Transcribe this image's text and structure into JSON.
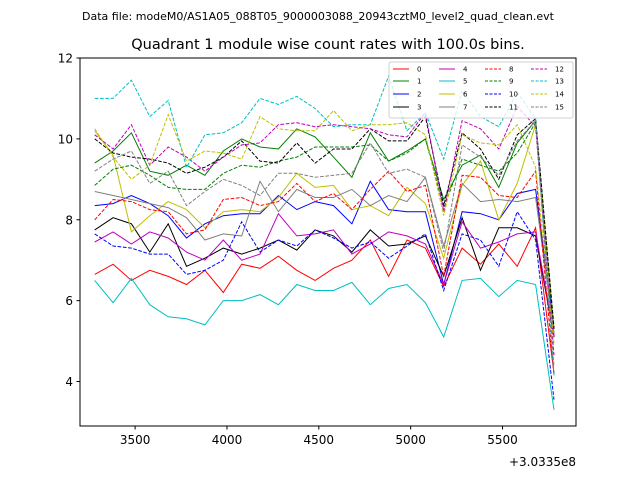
{
  "header": {
    "file_info": "Data file: modeM0/AS1A05_088T05_9000003088_20943cztM0_level2_quad_clean.evt"
  },
  "chart_data": {
    "type": "line",
    "title": "Quadrant 1 module wise count rates with 100.0s bins.",
    "xlabel": "",
    "ylabel": "",
    "x_offset_label": "+3.0335e8",
    "xlim": [
      3200,
      5900
    ],
    "ylim": [
      2.9,
      12
    ],
    "xticks": [
      3500,
      4000,
      4500,
      5000,
      5500
    ],
    "yticks": [
      4,
      6,
      8,
      10,
      12
    ],
    "x": [
      3280,
      3380,
      3480,
      3580,
      3680,
      3780,
      3880,
      3980,
      4080,
      4180,
      4280,
      4380,
      4480,
      4580,
      4680,
      4780,
      4880,
      4980,
      5080,
      5180,
      5280,
      5380,
      5480,
      5580,
      5680,
      5780
    ],
    "series": [
      {
        "name": "0",
        "color": "#ff0000",
        "dash": "solid",
        "values": [
          6.65,
          6.9,
          6.5,
          6.75,
          6.6,
          6.4,
          6.75,
          6.2,
          6.9,
          6.8,
          7.1,
          6.75,
          6.5,
          6.8,
          7.0,
          7.5,
          6.6,
          7.5,
          7.3,
          6.35,
          7.3,
          6.9,
          7.4,
          6.85,
          7.8,
          4.2
        ]
      },
      {
        "name": "1",
        "color": "#008000",
        "dash": "solid",
        "values": [
          9.4,
          9.7,
          10.15,
          9.2,
          9.1,
          9.35,
          9.1,
          9.7,
          10.0,
          9.8,
          9.75,
          10.25,
          10.05,
          9.55,
          9.05,
          10.15,
          9.45,
          9.7,
          10.0,
          8.5,
          9.35,
          9.6,
          8.8,
          9.9,
          10.45,
          5.1
        ]
      },
      {
        "name": "2",
        "color": "#0000ff",
        "dash": "solid",
        "values": [
          8.35,
          8.4,
          8.6,
          8.4,
          8.1,
          7.55,
          7.9,
          8.1,
          8.15,
          8.15,
          8.6,
          8.25,
          8.45,
          8.35,
          7.9,
          8.95,
          8.25,
          8.2,
          8.2,
          6.4,
          8.2,
          8.15,
          8.0,
          8.65,
          8.75,
          5.3
        ]
      },
      {
        "name": "3",
        "color": "#000000",
        "dash": "solid",
        "values": [
          7.75,
          8.05,
          7.9,
          7.2,
          7.9,
          6.85,
          7.05,
          7.3,
          7.15,
          7.3,
          7.5,
          7.25,
          7.75,
          7.6,
          7.2,
          7.75,
          7.35,
          7.4,
          7.6,
          6.6,
          8.05,
          6.75,
          7.8,
          7.8,
          7.6,
          5.1
        ]
      },
      {
        "name": "4",
        "color": "#bf00bf",
        "dash": "solid",
        "values": [
          7.45,
          7.7,
          7.4,
          7.7,
          7.55,
          7.2,
          7.0,
          7.5,
          7.0,
          7.15,
          8.15,
          7.6,
          7.65,
          7.75,
          7.15,
          7.4,
          7.7,
          7.6,
          7.4,
          6.4,
          7.95,
          7.3,
          7.45,
          7.65,
          7.7,
          5.15
        ]
      },
      {
        "name": "5",
        "color": "#00bfbf",
        "dash": "solid",
        "values": [
          6.5,
          5.95,
          6.55,
          5.9,
          5.6,
          5.55,
          5.4,
          6.0,
          6.0,
          6.15,
          5.9,
          6.4,
          6.25,
          6.25,
          6.45,
          5.9,
          6.3,
          6.4,
          5.95,
          5.1,
          6.5,
          6.55,
          6.1,
          6.5,
          6.4,
          3.3
        ]
      },
      {
        "name": "6",
        "color": "#bfbf00",
        "dash": "solid",
        "values": [
          10.2,
          9.6,
          7.7,
          8.1,
          8.45,
          8.25,
          7.8,
          8.2,
          8.25,
          8.2,
          8.55,
          9.15,
          8.8,
          8.85,
          8.25,
          8.35,
          8.1,
          8.8,
          8.4,
          7.05,
          8.85,
          9.45,
          8.0,
          8.9,
          10.35,
          5.3
        ]
      },
      {
        "name": "7",
        "color": "#808080",
        "dash": "solid",
        "values": [
          8.7,
          8.6,
          8.5,
          8.4,
          8.3,
          8.05,
          7.5,
          7.65,
          7.6,
          8.95,
          8.2,
          8.75,
          8.55,
          8.55,
          8.75,
          8.35,
          8.6,
          8.45,
          9.05,
          7.35,
          8.9,
          8.45,
          8.5,
          8.45,
          8.55,
          5.2
        ]
      },
      {
        "name": "8",
        "color": "#ff0000",
        "dash": "dashed",
        "values": [
          8.0,
          8.5,
          8.45,
          8.25,
          8.2,
          7.65,
          7.75,
          8.5,
          8.55,
          8.35,
          8.45,
          8.9,
          8.45,
          8.65,
          8.25,
          8.75,
          9.2,
          8.7,
          8.85,
          6.6,
          9.1,
          9.05,
          8.6,
          8.55,
          9.2,
          4.15
        ]
      },
      {
        "name": "9",
        "color": "#008000",
        "dash": "dashed",
        "values": [
          8.85,
          9.25,
          9.35,
          9.1,
          8.8,
          8.75,
          8.75,
          9.15,
          9.35,
          9.3,
          9.45,
          9.55,
          9.8,
          9.8,
          9.8,
          9.85,
          9.45,
          9.65,
          10.0,
          8.3,
          9.5,
          9.35,
          9.2,
          9.65,
          10.4,
          5.35
        ]
      },
      {
        "name": "10",
        "color": "#0000ff",
        "dash": "dashed",
        "values": [
          7.65,
          7.35,
          7.3,
          7.15,
          7.15,
          6.65,
          6.75,
          7.0,
          7.95,
          7.2,
          7.5,
          7.35,
          7.75,
          7.55,
          7.3,
          7.45,
          7.05,
          7.35,
          7.65,
          6.25,
          7.65,
          7.5,
          6.85,
          8.2,
          7.5,
          3.55
        ]
      },
      {
        "name": "11",
        "color": "#000000",
        "dash": "dashed",
        "values": [
          10.0,
          9.65,
          9.55,
          9.5,
          9.4,
          9.15,
          9.3,
          9.55,
          9.95,
          9.45,
          9.4,
          9.9,
          9.4,
          9.75,
          9.75,
          10.25,
          9.95,
          9.95,
          10.55,
          8.35,
          10.15,
          9.75,
          9.0,
          10.1,
          10.5,
          5.3
        ]
      },
      {
        "name": "12",
        "color": "#bf00bf",
        "dash": "dashed",
        "values": [
          10.1,
          9.75,
          10.35,
          9.35,
          9.8,
          9.55,
          9.2,
          9.55,
          9.85,
          9.9,
          10.35,
          10.4,
          10.3,
          10.35,
          10.3,
          10.25,
          10.1,
          10.05,
          10.65,
          8.2,
          10.45,
          10.25,
          9.75,
          10.8,
          10.3,
          4.65
        ]
      },
      {
        "name": "13",
        "color": "#00bfbf",
        "dash": "dashed",
        "values": [
          11.0,
          11.0,
          11.45,
          10.55,
          10.95,
          9.3,
          10.1,
          10.15,
          10.4,
          11.0,
          10.85,
          11.05,
          10.75,
          10.3,
          10.35,
          10.35,
          11.55,
          10.2,
          10.65,
          9.5,
          11.2,
          10.55,
          10.3,
          11.15,
          10.5,
          4.15
        ]
      },
      {
        "name": "14",
        "color": "#bfbf00",
        "dash": "dashed",
        "values": [
          10.25,
          9.55,
          9.0,
          9.35,
          10.6,
          9.45,
          9.7,
          9.65,
          9.5,
          10.55,
          10.25,
          10.2,
          10.2,
          10.7,
          10.2,
          10.35,
          10.35,
          10.4,
          10.1,
          8.1,
          10.1,
          9.9,
          9.85,
          10.35,
          9.3,
          4.95
        ]
      },
      {
        "name": "15",
        "color": "#808080",
        "dash": "dashed",
        "values": [
          9.2,
          9.5,
          9.7,
          8.9,
          9.2,
          8.35,
          8.7,
          9.0,
          8.85,
          8.6,
          9.15,
          9.15,
          9.05,
          9.1,
          9.15,
          9.9,
          9.15,
          9.25,
          9.05,
          7.2,
          9.85,
          9.55,
          9.1,
          9.95,
          10.45,
          4.35
        ]
      }
    ]
  }
}
